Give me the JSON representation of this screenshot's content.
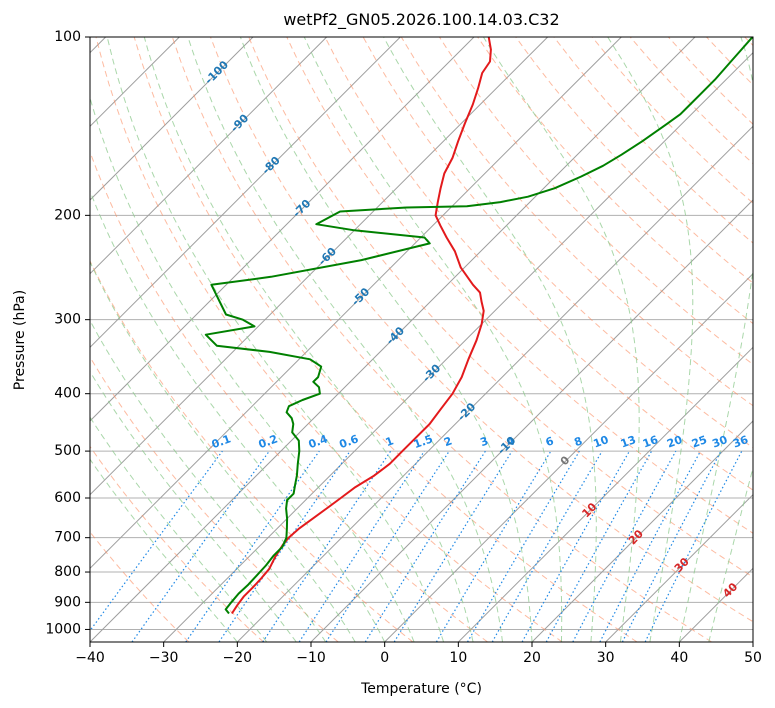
{
  "chart_data": {
    "type": "line",
    "subtype": "skew-t log-p diagram",
    "title": "wetPf2_GN05.2026.100.14.03.C32",
    "xlabel": "Temperature (°C)",
    "ylabel": "Pressure (hPa)",
    "xlim": [
      -40,
      50
    ],
    "ylim": [
      1050,
      100
    ],
    "y_scale": "log",
    "x_ticks": [
      -40,
      -30,
      -20,
      -10,
      0,
      10,
      20,
      30,
      40,
      50
    ],
    "y_ticks": [
      100,
      200,
      300,
      400,
      500,
      600,
      700,
      800,
      900,
      1000
    ],
    "grid": true,
    "colors": {
      "temperature": "#e31a1c",
      "dewpoint": "#008000",
      "isotherm": "#9e9e9e",
      "dry_adiabat": "#fc8d62",
      "moist_adiabat": "#8dc98d",
      "mixing_ratio": "#1e88e5",
      "isotherm_label": "#1f77b4",
      "dry_adiabat_label": "#d62728",
      "zero_label": "#777777"
    },
    "isotherm_labels": [
      "-100",
      "-90",
      "-80",
      "-70",
      "-60",
      "-50",
      "-40",
      "-30",
      "-20",
      "-10"
    ],
    "isotherm_label_values": [
      -100,
      -90,
      -80,
      -70,
      -60,
      -50,
      -40,
      -30,
      -20,
      -10
    ],
    "isotherm_label_pressures": [
      115,
      140,
      165,
      195,
      235,
      275,
      320,
      370,
      430,
      490
    ],
    "zero_isotherm": {
      "label": "0",
      "value": 0,
      "pressure": 520
    },
    "dry_adiabat_labels": [
      "10",
      "20",
      "30",
      "40"
    ],
    "dry_adiabat_label_values": [
      10,
      20,
      30,
      40
    ],
    "dry_adiabat_label_pressures": [
      630,
      700,
      780,
      860
    ],
    "mixing_ratio_labels": [
      "0.1",
      "0.2",
      "0.4",
      "0.6",
      "1",
      "1.5",
      "2",
      "3",
      "4",
      "6",
      "8",
      "10",
      "13",
      "16",
      "20",
      "25",
      "30",
      "36"
    ],
    "mixing_ratio_values": [
      0.1,
      0.2,
      0.4,
      0.6,
      1,
      1.5,
      2,
      3,
      4,
      6,
      8,
      10,
      13,
      16,
      20,
      25,
      30,
      36
    ],
    "series": [
      {
        "name": "",
        "role": "temperature",
        "color": "#e31a1c",
        "points": [
          [
            -24.6,
            940
          ],
          [
            -25.0,
            910
          ],
          [
            -25.3,
            880
          ],
          [
            -25.3,
            850
          ],
          [
            -25.4,
            820
          ],
          [
            -25.6,
            790
          ],
          [
            -26.4,
            755
          ],
          [
            -27.0,
            720
          ],
          [
            -27.2,
            700
          ],
          [
            -27.0,
            675
          ],
          [
            -26.5,
            650
          ],
          [
            -26.0,
            625
          ],
          [
            -25.5,
            600
          ],
          [
            -25.0,
            575
          ],
          [
            -24.0,
            550
          ],
          [
            -23.5,
            525
          ],
          [
            -23.5,
            500
          ],
          [
            -23.5,
            475
          ],
          [
            -23.5,
            450
          ],
          [
            -24.0,
            425
          ],
          [
            -24.5,
            400
          ],
          [
            -25.5,
            375
          ],
          [
            -27.0,
            350
          ],
          [
            -28.5,
            325
          ],
          [
            -30.0,
            305
          ],
          [
            -31.5,
            290
          ],
          [
            -33.0,
            280
          ],
          [
            -34.5,
            270
          ],
          [
            -36.5,
            262
          ],
          [
            -40.5,
            245
          ],
          [
            -43.5,
            230
          ],
          [
            -46.5,
            218
          ],
          [
            -49.0,
            208
          ],
          [
            -51.0,
            200
          ],
          [
            -52.5,
            190
          ],
          [
            -54.0,
            180
          ],
          [
            -55.5,
            170
          ],
          [
            -56.5,
            160
          ],
          [
            -58.0,
            150
          ],
          [
            -59.5,
            140
          ],
          [
            -61.0,
            130
          ],
          [
            -62.5,
            122
          ],
          [
            -64.0,
            115
          ],
          [
            -64.5,
            110
          ],
          [
            -66.0,
            105
          ],
          [
            -68.0,
            100
          ]
        ]
      },
      {
        "name": "",
        "role": "dewpoint",
        "color": "#008000",
        "points": [
          [
            -25.0,
            940
          ],
          [
            -26.0,
            925
          ],
          [
            -26.2,
            900
          ],
          [
            -26.4,
            870
          ],
          [
            -26.3,
            840
          ],
          [
            -26.4,
            810
          ],
          [
            -26.5,
            780
          ],
          [
            -26.8,
            750
          ],
          [
            -26.8,
            725
          ],
          [
            -27.5,
            700
          ],
          [
            -28.7,
            675
          ],
          [
            -30.0,
            650
          ],
          [
            -31.5,
            625
          ],
          [
            -32.5,
            605
          ],
          [
            -32.5,
            590
          ],
          [
            -33.5,
            570
          ],
          [
            -34.5,
            550
          ],
          [
            -36.0,
            525
          ],
          [
            -37.5,
            500
          ],
          [
            -39.0,
            480
          ],
          [
            -41.0,
            465
          ],
          [
            -42.0,
            450
          ],
          [
            -43.0,
            440
          ],
          [
            -44.5,
            430
          ],
          [
            -45.0,
            420
          ],
          [
            -44.0,
            410
          ],
          [
            -42.5,
            400
          ],
          [
            -43.5,
            390
          ],
          [
            -45.0,
            382
          ],
          [
            -45.0,
            375
          ],
          [
            -46.0,
            360
          ],
          [
            -48.5,
            350
          ],
          [
            -55.0,
            340
          ],
          [
            -63.0,
            332
          ],
          [
            -66.0,
            318
          ],
          [
            -60.5,
            308
          ],
          [
            -63.0,
            300
          ],
          [
            -66.0,
            294
          ],
          [
            -72.0,
            262
          ],
          [
            -65.0,
            254
          ],
          [
            -55.0,
            238
          ],
          [
            -48.0,
            223
          ],
          [
            -49.5,
            218
          ],
          [
            -60.0,
            212
          ],
          [
            -66.0,
            207
          ],
          [
            -64.5,
            197
          ],
          [
            -56.0,
            194
          ],
          [
            -48.0,
            193
          ],
          [
            -44.0,
            190
          ],
          [
            -41.0,
            186
          ],
          [
            -38.5,
            180
          ],
          [
            -36.5,
            172
          ],
          [
            -35.0,
            165
          ],
          [
            -34.0,
            158
          ],
          [
            -33.0,
            150
          ],
          [
            -32.5,
            145
          ],
          [
            -32.0,
            140
          ],
          [
            -31.5,
            135
          ],
          [
            -31.5,
            130
          ],
          [
            -31.5,
            125
          ],
          [
            -31.5,
            118
          ],
          [
            -31.8,
            110
          ],
          [
            -32.0,
            105
          ],
          [
            -32.2,
            100
          ]
        ]
      }
    ]
  }
}
